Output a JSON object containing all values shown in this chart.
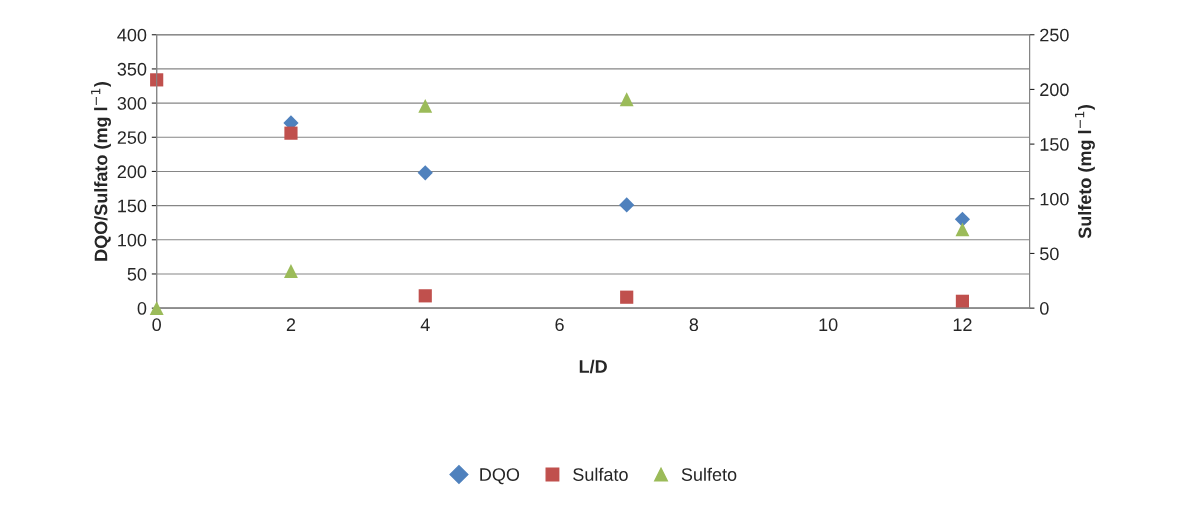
{
  "chart_data": {
    "type": "scatter",
    "xlabel": "L/D",
    "ylabel": "DQO/Sulfato (mg l$^{−1}$)",
    "y2label": "Sulfeto (mg l$^{−1}$)",
    "xlim": [
      0,
      13
    ],
    "xticks": [
      0,
      2,
      4,
      6,
      8,
      10,
      12
    ],
    "ylim": [
      0,
      400
    ],
    "yticks": [
      0,
      50,
      100,
      150,
      200,
      250,
      300,
      350,
      400
    ],
    "y2lim": [
      0,
      250
    ],
    "y2ticks": [
      0,
      50,
      100,
      150,
      200,
      250
    ],
    "grid": "y",
    "legend": "bottom",
    "series": [
      {
        "name": "DQO",
        "color": "#4f81bd",
        "marker": "diamond",
        "x": [
          2,
          4,
          7,
          12
        ],
        "values": [
          271,
          198,
          151,
          130
        ]
      },
      {
        "name": "Sulfato",
        "color": "#c0504d",
        "marker": "square",
        "x": [
          0,
          2,
          4,
          7,
          12
        ],
        "values": [
          334,
          256,
          18,
          16,
          10
        ]
      },
      {
        "name": "Sulfeto",
        "color": "#9bbb59",
        "marker": "triangle",
        "axis": "y2",
        "x": [
          0,
          2,
          4,
          7,
          12
        ],
        "values": [
          0,
          34,
          185,
          191,
          72
        ]
      }
    ]
  }
}
